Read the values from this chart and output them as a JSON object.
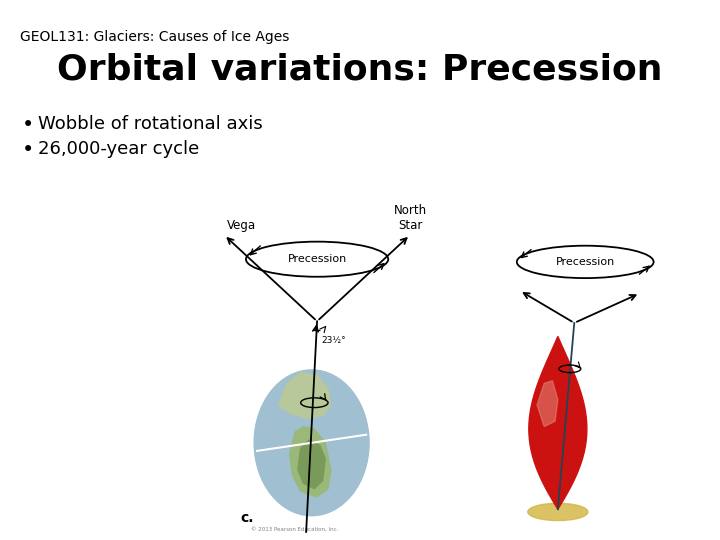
{
  "background_color": "#ffffff",
  "subtitle": "GEOL131: Glaciers: Causes of Ice Ages",
  "title": "Orbital variations: Precession",
  "bullets": [
    "Wobble of rotational axis",
    "26,000-year cycle"
  ],
  "subtitle_fontsize": 10,
  "title_fontsize": 26,
  "bullet_fontsize": 13,
  "earth_color": "#a0bfd0",
  "land_color1": "#8aab78",
  "land_color2": "#b0c890",
  "top_color": "#cc1111",
  "top_highlight": "#e06060",
  "base_color": "#d4b84a",
  "axis_color": "#222222",
  "label_fontsize": 8,
  "prec_label_fontsize": 8
}
